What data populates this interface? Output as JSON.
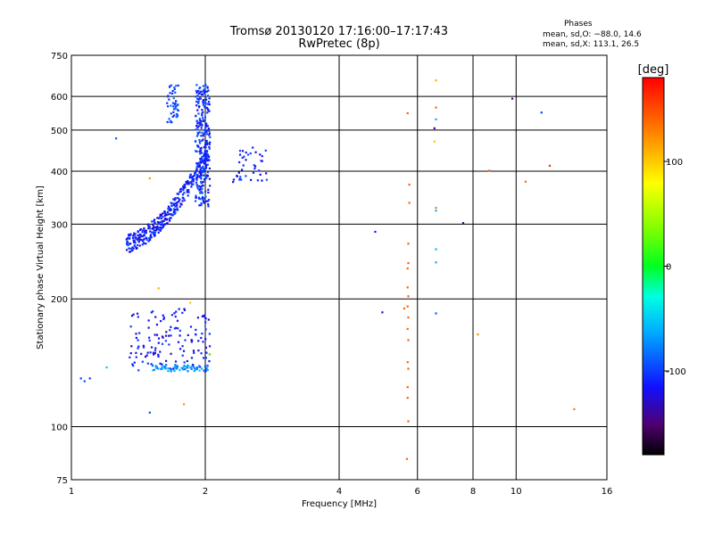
{
  "header": {
    "title_line1": "Tromsø 20130120 17:16:00–17:17:43",
    "title_line2": "RwPretec (8p)",
    "stats_heading": "Phases",
    "stats_o": "mean, sd,O: −88.0, 14.6",
    "stats_x": "mean, sd,X: 113.1, 26.5"
  },
  "colors": {
    "grid": "#000000",
    "background": "#ffffff"
  },
  "chart_data": {
    "type": "scatter",
    "xlabel": "Frequency [MHz]",
    "ylabel": "Stationary phase Virtual Height [km]",
    "x_scale": "log",
    "y_scale": "log",
    "xlim": [
      1,
      16
    ],
    "ylim": [
      75,
      750
    ],
    "x_ticks": [
      1,
      2,
      4,
      6,
      8,
      10,
      16
    ],
    "y_ticks": [
      75,
      100,
      200,
      300,
      400,
      500,
      600,
      750
    ],
    "grid": true,
    "colorbar": {
      "label": "[deg]",
      "range": [
        -180,
        180
      ],
      "ticks": [
        100,
        0,
        -100
      ]
    },
    "clusters": [
      {
        "description": "F-layer trace",
        "x_range": [
          1.33,
          2.05
        ],
        "y_range": [
          268,
          440
        ],
        "n": 360,
        "phase": -110
      },
      {
        "description": "F-layer vertical trace",
        "x_range": [
          1.9,
          2.05
        ],
        "y_range": [
          330,
          640
        ],
        "n": 240,
        "phase": -105
      },
      {
        "description": "upper cluster",
        "x_range": [
          1.64,
          1.74
        ],
        "y_range": [
          520,
          640
        ],
        "n": 45,
        "phase": -95
      },
      {
        "description": "oblique trace",
        "x_range": [
          2.3,
          2.75
        ],
        "y_range": [
          375,
          460
        ],
        "n": 40,
        "phase": -110
      },
      {
        "description": "E-region echoes",
        "x_range": [
          1.35,
          2.05
        ],
        "y_range": [
          135,
          190
        ],
        "n": 140,
        "phase": -115
      },
      {
        "description": "E-region band",
        "x_range": [
          1.5,
          2.05
        ],
        "y_range": [
          135,
          140
        ],
        "n": 60,
        "phase": -70
      }
    ],
    "points": [
      [
        1.05,
        130,
        -100
      ],
      [
        1.1,
        130,
        -100
      ],
      [
        1.07,
        128,
        -95
      ],
      [
        1.2,
        138,
        -50
      ],
      [
        1.26,
        478,
        -90
      ],
      [
        1.5,
        108,
        -95
      ],
      [
        1.57,
        212,
        110
      ],
      [
        1.79,
        113,
        120
      ],
      [
        1.85,
        196,
        100
      ],
      [
        2.05,
        148,
        50
      ],
      [
        1.5,
        385,
        120
      ],
      [
        4.82,
        288,
        -110
      ],
      [
        5.0,
        186,
        -120
      ],
      [
        5.7,
        548,
        140
      ],
      [
        5.75,
        372,
        140
      ],
      [
        5.75,
        337,
        140
      ],
      [
        5.72,
        270,
        140
      ],
      [
        5.72,
        243,
        140
      ],
      [
        5.7,
        236,
        140
      ],
      [
        5.7,
        213,
        140
      ],
      [
        5.72,
        203,
        140
      ],
      [
        5.7,
        192,
        140
      ],
      [
        5.72,
        181,
        140
      ],
      [
        5.7,
        170,
        140
      ],
      [
        5.72,
        160,
        140
      ],
      [
        5.7,
        142,
        140
      ],
      [
        5.72,
        137,
        140
      ],
      [
        5.7,
        124,
        140
      ],
      [
        5.7,
        117,
        140
      ],
      [
        5.72,
        103,
        140
      ],
      [
        5.68,
        84,
        140
      ],
      [
        5.6,
        190,
        140
      ],
      [
        6.6,
        655,
        110
      ],
      [
        6.6,
        565,
        140
      ],
      [
        6.6,
        530,
        -60
      ],
      [
        6.55,
        505,
        -140
      ],
      [
        6.55,
        470,
        100
      ],
      [
        6.6,
        328,
        130
      ],
      [
        6.6,
        323,
        -60
      ],
      [
        6.6,
        262,
        -60
      ],
      [
        6.6,
        244,
        -60
      ],
      [
        6.6,
        185,
        -90
      ],
      [
        7.6,
        302,
        -150
      ],
      [
        8.2,
        165,
        120
      ],
      [
        8.7,
        401,
        150
      ],
      [
        9.8,
        593,
        -150
      ],
      [
        10.5,
        378,
        140
      ],
      [
        11.4,
        550,
        -100
      ],
      [
        11.9,
        412,
        160
      ],
      [
        13.5,
        110,
        130
      ]
    ]
  }
}
